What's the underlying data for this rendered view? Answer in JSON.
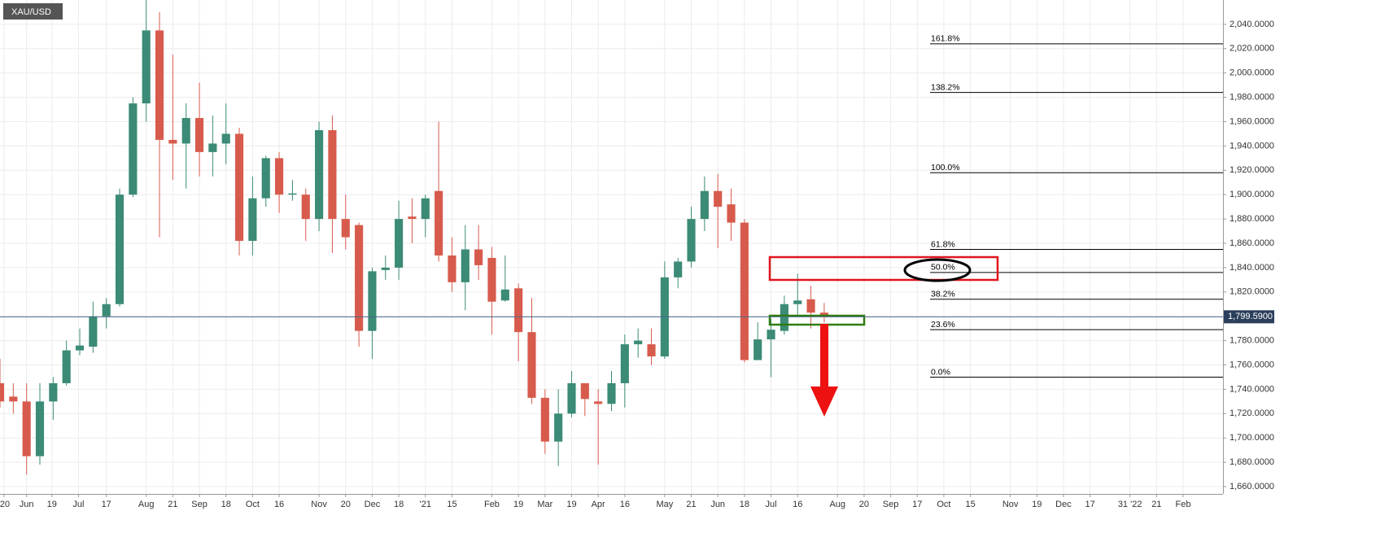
{
  "chart_data": {
    "type": "candlestick",
    "title": "XAU/USD",
    "up_color": "#3b8b76",
    "down_color": "#d75b4d",
    "grid": true,
    "ylim": [
      1654,
      2060
    ],
    "yticks": [
      {
        "value": 1660,
        "label": "1,660.0000"
      },
      {
        "value": 1680,
        "label": "1,680.0000"
      },
      {
        "value": 1700,
        "label": "1,700.0000"
      },
      {
        "value": 1720,
        "label": "1,720.0000"
      },
      {
        "value": 1740,
        "label": "1,740.0000"
      },
      {
        "value": 1760,
        "label": "1,760.0000"
      },
      {
        "value": 1780,
        "label": "1,780.0000"
      },
      {
        "value": 1800,
        "label": "1,800.0000"
      },
      {
        "value": 1820,
        "label": "1,820.0000"
      },
      {
        "value": 1840,
        "label": "1,840.0000"
      },
      {
        "value": 1860,
        "label": "1,860.0000"
      },
      {
        "value": 1880,
        "label": "1,880.0000"
      },
      {
        "value": 1900,
        "label": "1,900.0000"
      },
      {
        "value": 1920,
        "label": "1,920.0000"
      },
      {
        "value": 1940,
        "label": "1,940.0000"
      },
      {
        "value": 1960,
        "label": "1,960.0000"
      },
      {
        "value": 1980,
        "label": "1,980.0000"
      },
      {
        "value": 2000,
        "label": "2,000.0000"
      },
      {
        "value": 2020,
        "label": "2,020.0000"
      },
      {
        "value": 2040,
        "label": "2,040.0000"
      }
    ],
    "xlim": [
      0,
      92
    ],
    "xticks": [
      {
        "value": 0.3,
        "label": "'20"
      },
      {
        "value": 2,
        "label": "Jun"
      },
      {
        "value": 3.9,
        "label": "19"
      },
      {
        "value": 5.9,
        "label": "Jul"
      },
      {
        "value": 8,
        "label": "17"
      },
      {
        "value": 11,
        "label": "Aug"
      },
      {
        "value": 13,
        "label": "21"
      },
      {
        "value": 15,
        "label": "Sep"
      },
      {
        "value": 17,
        "label": "18"
      },
      {
        "value": 19,
        "label": "Oct"
      },
      {
        "value": 21,
        "label": "16"
      },
      {
        "value": 24,
        "label": "Nov"
      },
      {
        "value": 26,
        "label": "20"
      },
      {
        "value": 28,
        "label": "Dec"
      },
      {
        "value": 30,
        "label": "18"
      },
      {
        "value": 32,
        "label": "'21"
      },
      {
        "value": 34,
        "label": "15"
      },
      {
        "value": 37,
        "label": "Feb"
      },
      {
        "value": 39,
        "label": "19"
      },
      {
        "value": 41,
        "label": "Mar"
      },
      {
        "value": 43,
        "label": "19"
      },
      {
        "value": 45,
        "label": "Apr"
      },
      {
        "value": 47,
        "label": "16"
      },
      {
        "value": 50,
        "label": "May"
      },
      {
        "value": 52,
        "label": "21"
      },
      {
        "value": 54,
        "label": "Jun"
      },
      {
        "value": 56,
        "label": "18"
      },
      {
        "value": 58,
        "label": "Jul"
      },
      {
        "value": 60,
        "label": "16"
      },
      {
        "value": 63,
        "label": "Aug"
      },
      {
        "value": 65,
        "label": "20"
      },
      {
        "value": 67,
        "label": "Sep"
      },
      {
        "value": 69,
        "label": "17"
      },
      {
        "value": 71,
        "label": "Oct"
      },
      {
        "value": 73,
        "label": "15"
      },
      {
        "value": 76,
        "label": "Nov"
      },
      {
        "value": 78,
        "label": "19"
      },
      {
        "value": 80,
        "label": "Dec"
      },
      {
        "value": 82,
        "label": "17"
      },
      {
        "value": 85,
        "label": "31 '22"
      },
      {
        "value": 87,
        "label": "21"
      },
      {
        "value": 89,
        "label": "Feb"
      }
    ],
    "candles": [
      {
        "open": 1745,
        "high": 1765,
        "low": 1725,
        "close": 1730
      },
      {
        "open": 1734,
        "high": 1745,
        "low": 1720,
        "close": 1730
      },
      {
        "open": 1730,
        "high": 1745,
        "low": 1670,
        "close": 1685
      },
      {
        "open": 1685,
        "high": 1745,
        "low": 1678,
        "close": 1730
      },
      {
        "open": 1730,
        "high": 1750,
        "low": 1715,
        "close": 1745
      },
      {
        "open": 1745,
        "high": 1780,
        "low": 1743,
        "close": 1772
      },
      {
        "open": 1772,
        "high": 1790,
        "low": 1768,
        "close": 1776
      },
      {
        "open": 1775,
        "high": 1812,
        "low": 1770,
        "close": 1800
      },
      {
        "open": 1800,
        "high": 1815,
        "low": 1790,
        "close": 1810
      },
      {
        "open": 1810,
        "high": 1905,
        "low": 1808,
        "close": 1900
      },
      {
        "open": 1900,
        "high": 1980,
        "low": 1898,
        "close": 1975
      },
      {
        "open": 1975,
        "high": 2075,
        "low": 1960,
        "close": 2035
      },
      {
        "open": 2035,
        "high": 2050,
        "low": 1865,
        "close": 1945
      },
      {
        "open": 1945,
        "high": 2015,
        "low": 1912,
        "close": 1942
      },
      {
        "open": 1942,
        "high": 1975,
        "low": 1905,
        "close": 1963
      },
      {
        "open": 1963,
        "high": 1992,
        "low": 1915,
        "close": 1935
      },
      {
        "open": 1935,
        "high": 1965,
        "low": 1915,
        "close": 1942
      },
      {
        "open": 1942,
        "high": 1975,
        "low": 1925,
        "close": 1950
      },
      {
        "open": 1950,
        "high": 1955,
        "low": 1850,
        "close": 1862
      },
      {
        "open": 1862,
        "high": 1915,
        "low": 1850,
        "close": 1897
      },
      {
        "open": 1897,
        "high": 1932,
        "low": 1890,
        "close": 1930
      },
      {
        "open": 1930,
        "high": 1935,
        "low": 1885,
        "close": 1900
      },
      {
        "open": 1900,
        "high": 1912,
        "low": 1895,
        "close": 1901
      },
      {
        "open": 1900,
        "high": 1905,
        "low": 1862,
        "close": 1880
      },
      {
        "open": 1880,
        "high": 1960,
        "low": 1870,
        "close": 1953
      },
      {
        "open": 1953,
        "high": 1965,
        "low": 1852,
        "close": 1880
      },
      {
        "open": 1880,
        "high": 1900,
        "low": 1855,
        "close": 1865
      },
      {
        "open": 1875,
        "high": 1877,
        "low": 1775,
        "close": 1788
      },
      {
        "open": 1788,
        "high": 1840,
        "low": 1765,
        "close": 1837
      },
      {
        "open": 1838,
        "high": 1850,
        "low": 1830,
        "close": 1840
      },
      {
        "open": 1840,
        "high": 1895,
        "low": 1830,
        "close": 1880
      },
      {
        "open": 1882,
        "high": 1897,
        "low": 1860,
        "close": 1880
      },
      {
        "open": 1880,
        "high": 1900,
        "low": 1865,
        "close": 1897
      },
      {
        "open": 1903,
        "high": 1960,
        "low": 1845,
        "close": 1850
      },
      {
        "open": 1850,
        "high": 1865,
        "low": 1820,
        "close": 1828
      },
      {
        "open": 1828,
        "high": 1875,
        "low": 1805,
        "close": 1855
      },
      {
        "open": 1855,
        "high": 1875,
        "low": 1830,
        "close": 1842
      },
      {
        "open": 1848,
        "high": 1857,
        "low": 1785,
        "close": 1812
      },
      {
        "open": 1813,
        "high": 1850,
        "low": 1812,
        "close": 1822
      },
      {
        "open": 1823,
        "high": 1827,
        "low": 1763,
        "close": 1787
      },
      {
        "open": 1787,
        "high": 1815,
        "low": 1728,
        "close": 1733
      },
      {
        "open": 1733,
        "high": 1740,
        "low": 1687,
        "close": 1697
      },
      {
        "open": 1697,
        "high": 1740,
        "low": 1677,
        "close": 1720
      },
      {
        "open": 1720,
        "high": 1755,
        "low": 1717,
        "close": 1745
      },
      {
        "open": 1745,
        "high": 1745,
        "low": 1718,
        "close": 1732
      },
      {
        "open": 1730,
        "high": 1740,
        "low": 1678,
        "close": 1728
      },
      {
        "open": 1728,
        "high": 1755,
        "low": 1722,
        "close": 1745
      },
      {
        "open": 1745,
        "high": 1785,
        "low": 1725,
        "close": 1777
      },
      {
        "open": 1777,
        "high": 1790,
        "low": 1766,
        "close": 1780
      },
      {
        "open": 1777,
        "high": 1790,
        "low": 1760,
        "close": 1767
      },
      {
        "open": 1767,
        "high": 1845,
        "low": 1765,
        "close": 1832
      },
      {
        "open": 1832,
        "high": 1848,
        "low": 1823,
        "close": 1845
      },
      {
        "open": 1845,
        "high": 1890,
        "low": 1840,
        "close": 1880
      },
      {
        "open": 1880,
        "high": 1915,
        "low": 1870,
        "close": 1903
      },
      {
        "open": 1903,
        "high": 1917,
        "low": 1856,
        "close": 1890
      },
      {
        "open": 1892,
        "high": 1905,
        "low": 1862,
        "close": 1877
      },
      {
        "open": 1877,
        "high": 1880,
        "low": 1762,
        "close": 1764
      },
      {
        "open": 1764,
        "high": 1795,
        "low": 1764,
        "close": 1781
      },
      {
        "open": 1781,
        "high": 1798,
        "low": 1750,
        "close": 1789
      },
      {
        "open": 1788,
        "high": 1817,
        "low": 1785,
        "close": 1810
      },
      {
        "open": 1810,
        "high": 1835,
        "low": 1800,
        "close": 1813
      },
      {
        "open": 1814,
        "high": 1825,
        "low": 1790,
        "close": 1803
      },
      {
        "open": 1803,
        "high": 1811,
        "low": 1795,
        "close": 1799.59
      }
    ],
    "current_price": {
      "value": 1799.59,
      "label": "1,799.5900"
    },
    "fib_levels": [
      {
        "value": 2024,
        "label": "161.8%"
      },
      {
        "value": 1984,
        "label": "138.2%"
      },
      {
        "value": 1918,
        "label": "100.0%"
      },
      {
        "value": 1855,
        "label": "61.8%"
      },
      {
        "value": 1836,
        "label": "50.0%"
      },
      {
        "value": 1814,
        "label": "38.2%"
      },
      {
        "value": 1789,
        "label": "23.6%"
      },
      {
        "value": 1750,
        "label": "0.0%"
      }
    ]
  }
}
